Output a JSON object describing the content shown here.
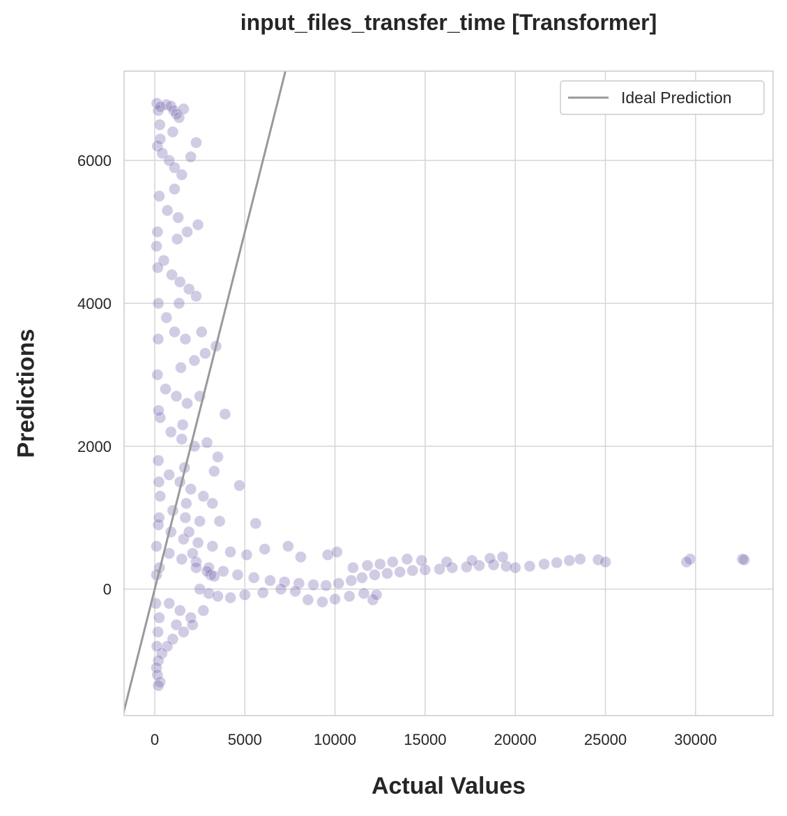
{
  "chart_data": {
    "type": "scatter",
    "title": "input_files_transfer_time [Transformer]",
    "xlabel": "Actual Values",
    "ylabel": "Predictions",
    "xlim": [
      -1700,
      34300
    ],
    "ylim": [
      -1770,
      7250
    ],
    "xticks": [
      0,
      5000,
      10000,
      15000,
      20000,
      25000,
      30000
    ],
    "yticks": [
      0,
      2000,
      4000,
      6000
    ],
    "grid": true,
    "legend": {
      "position": "top-right",
      "entries": [
        "Ideal Prediction"
      ]
    },
    "colors": {
      "points": "#7b6bb0",
      "ideal_line": "#999999",
      "grid": "#d5d5d5",
      "frame": "#cccccc"
    },
    "ideal_line": {
      "x": [
        -1770,
        7250
      ],
      "y": [
        -1770,
        7250
      ]
    },
    "series": [
      {
        "values": [
          [
            120,
            6800
          ],
          [
            200,
            6700
          ],
          [
            310,
            6750
          ],
          [
            640,
            6780
          ],
          [
            900,
            6760
          ],
          [
            1050,
            6700
          ],
          [
            1200,
            6650
          ],
          [
            1350,
            6600
          ],
          [
            1600,
            6720
          ],
          [
            2300,
            6250
          ],
          [
            150,
            6200
          ],
          [
            420,
            6100
          ],
          [
            800,
            6000
          ],
          [
            1100,
            5900
          ],
          [
            1500,
            5800
          ],
          [
            2000,
            6050
          ],
          [
            2400,
            5100
          ],
          [
            250,
            5500
          ],
          [
            700,
            5300
          ],
          [
            1300,
            5200
          ],
          [
            1800,
            5000
          ],
          [
            100,
            4800
          ],
          [
            500,
            4600
          ],
          [
            950,
            4400
          ],
          [
            1400,
            4300
          ],
          [
            1900,
            4200
          ],
          [
            2300,
            4100
          ],
          [
            2600,
            3600
          ],
          [
            200,
            4000
          ],
          [
            650,
            3800
          ],
          [
            1100,
            3600
          ],
          [
            1700,
            3500
          ],
          [
            2200,
            3200
          ],
          [
            2800,
            3300
          ],
          [
            3400,
            3400
          ],
          [
            150,
            3000
          ],
          [
            600,
            2800
          ],
          [
            1200,
            2700
          ],
          [
            1800,
            2600
          ],
          [
            2500,
            2700
          ],
          [
            3900,
            2450
          ],
          [
            300,
            2400
          ],
          [
            900,
            2200
          ],
          [
            1500,
            2100
          ],
          [
            2200,
            2000
          ],
          [
            2900,
            2050
          ],
          [
            3500,
            1850
          ],
          [
            3300,
            1650
          ],
          [
            200,
            1800
          ],
          [
            800,
            1600
          ],
          [
            1400,
            1500
          ],
          [
            2000,
            1400
          ],
          [
            2700,
            1300
          ],
          [
            3200,
            1200
          ],
          [
            4700,
            1450
          ],
          [
            300,
            1300
          ],
          [
            1000,
            1100
          ],
          [
            1700,
            1000
          ],
          [
            2500,
            950
          ],
          [
            3600,
            950
          ],
          [
            5600,
            920
          ],
          [
            200,
            900
          ],
          [
            900,
            800
          ],
          [
            1600,
            700
          ],
          [
            2400,
            650
          ],
          [
            3200,
            600
          ],
          [
            4200,
            520
          ],
          [
            5100,
            480
          ],
          [
            6100,
            560
          ],
          [
            7400,
            600
          ],
          [
            8100,
            450
          ],
          [
            9600,
            480
          ],
          [
            10100,
            520
          ],
          [
            100,
            600
          ],
          [
            800,
            500
          ],
          [
            1500,
            420
          ],
          [
            2300,
            380
          ],
          [
            3000,
            300
          ],
          [
            3800,
            250
          ],
          [
            4600,
            200
          ],
          [
            5500,
            160
          ],
          [
            6400,
            120
          ],
          [
            7200,
            100
          ],
          [
            8000,
            80
          ],
          [
            8800,
            60
          ],
          [
            9500,
            50
          ],
          [
            10200,
            80
          ],
          [
            10900,
            120
          ],
          [
            11500,
            160
          ],
          [
            12200,
            200
          ],
          [
            12900,
            220
          ],
          [
            13600,
            240
          ],
          [
            14300,
            260
          ],
          [
            15000,
            270
          ],
          [
            15800,
            280
          ],
          [
            16500,
            300
          ],
          [
            17300,
            310
          ],
          [
            18000,
            330
          ],
          [
            18800,
            340
          ],
          [
            19500,
            320
          ],
          [
            20000,
            300
          ],
          [
            20800,
            320
          ],
          [
            21600,
            350
          ],
          [
            22300,
            370
          ],
          [
            23000,
            400
          ],
          [
            23600,
            420
          ],
          [
            24600,
            410
          ],
          [
            25000,
            380
          ],
          [
            29700,
            420
          ],
          [
            29500,
            380
          ],
          [
            32600,
            420
          ],
          [
            32700,
            410
          ],
          [
            11000,
            300
          ],
          [
            11800,
            330
          ],
          [
            12500,
            350
          ],
          [
            13200,
            380
          ],
          [
            14000,
            420
          ],
          [
            14800,
            400
          ],
          [
            16200,
            380
          ],
          [
            17600,
            400
          ],
          [
            18600,
            430
          ],
          [
            19300,
            450
          ],
          [
            2500,
            0
          ],
          [
            3000,
            -60
          ],
          [
            3500,
            -100
          ],
          [
            4200,
            -120
          ],
          [
            5000,
            -80
          ],
          [
            6000,
            -50
          ],
          [
            7000,
            0
          ],
          [
            7800,
            -30
          ],
          [
            8500,
            -150
          ],
          [
            9300,
            -180
          ],
          [
            10000,
            -140
          ],
          [
            10800,
            -100
          ],
          [
            11600,
            -60
          ],
          [
            12100,
            -150
          ],
          [
            12300,
            -80
          ],
          [
            3100,
            200
          ],
          [
            2900,
            250
          ],
          [
            3300,
            180
          ],
          [
            800,
            -200
          ],
          [
            1400,
            -300
          ],
          [
            2000,
            -400
          ],
          [
            2700,
            -300
          ],
          [
            1200,
            -500
          ],
          [
            1600,
            -600
          ],
          [
            2100,
            -500
          ],
          [
            1000,
            -700
          ],
          [
            700,
            -800
          ],
          [
            400,
            -900
          ],
          [
            200,
            -1000
          ],
          [
            100,
            -1100
          ],
          [
            150,
            -1200
          ],
          [
            300,
            -1300
          ],
          [
            200,
            -1350
          ],
          [
            120,
            -800
          ],
          [
            180,
            -600
          ],
          [
            250,
            -400
          ],
          [
            60,
            -200
          ],
          [
            100,
            200
          ],
          [
            150,
            5000
          ],
          [
            170,
            4500
          ],
          [
            190,
            3500
          ],
          [
            210,
            2500
          ],
          [
            230,
            1500
          ],
          [
            240,
            1000
          ],
          [
            260,
            300
          ],
          [
            280,
            6500
          ],
          [
            300,
            6300
          ],
          [
            1000,
            6400
          ],
          [
            1100,
            5600
          ],
          [
            1250,
            4900
          ],
          [
            1350,
            4000
          ],
          [
            1450,
            3100
          ],
          [
            1550,
            2300
          ],
          [
            1650,
            1700
          ],
          [
            1750,
            1200
          ],
          [
            1900,
            800
          ],
          [
            2100,
            500
          ],
          [
            2300,
            300
          ]
        ]
      }
    ]
  }
}
